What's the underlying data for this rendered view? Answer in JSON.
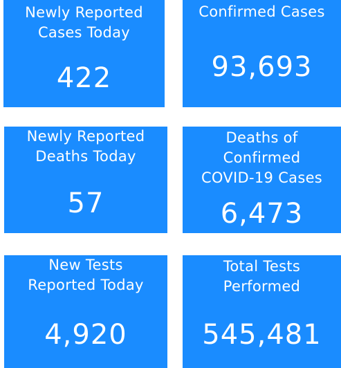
{
  "tiles": [
    {
      "label_lines": [
        "Newly Reported",
        "Cases Today"
      ],
      "value": "422"
    },
    {
      "label_lines": [
        "Confirmed Cases"
      ],
      "value": "93,693"
    },
    {
      "label_lines": [
        "Newly Reported",
        "Deaths Today"
      ],
      "value": "57"
    },
    {
      "label_lines": [
        "Deaths of",
        "Confirmed",
        "COVID-19 Cases"
      ],
      "value": "6,473"
    },
    {
      "label_lines": [
        "New Tests",
        "Reported Today"
      ],
      "value": "4,920"
    },
    {
      "label_lines": [
        "Total Tests",
        "Performed"
      ],
      "value": "545,481"
    }
  ],
  "colors": {
    "tile_background": "#1a8cff",
    "text": "#ffffff",
    "page_background": "#ffffff"
  }
}
